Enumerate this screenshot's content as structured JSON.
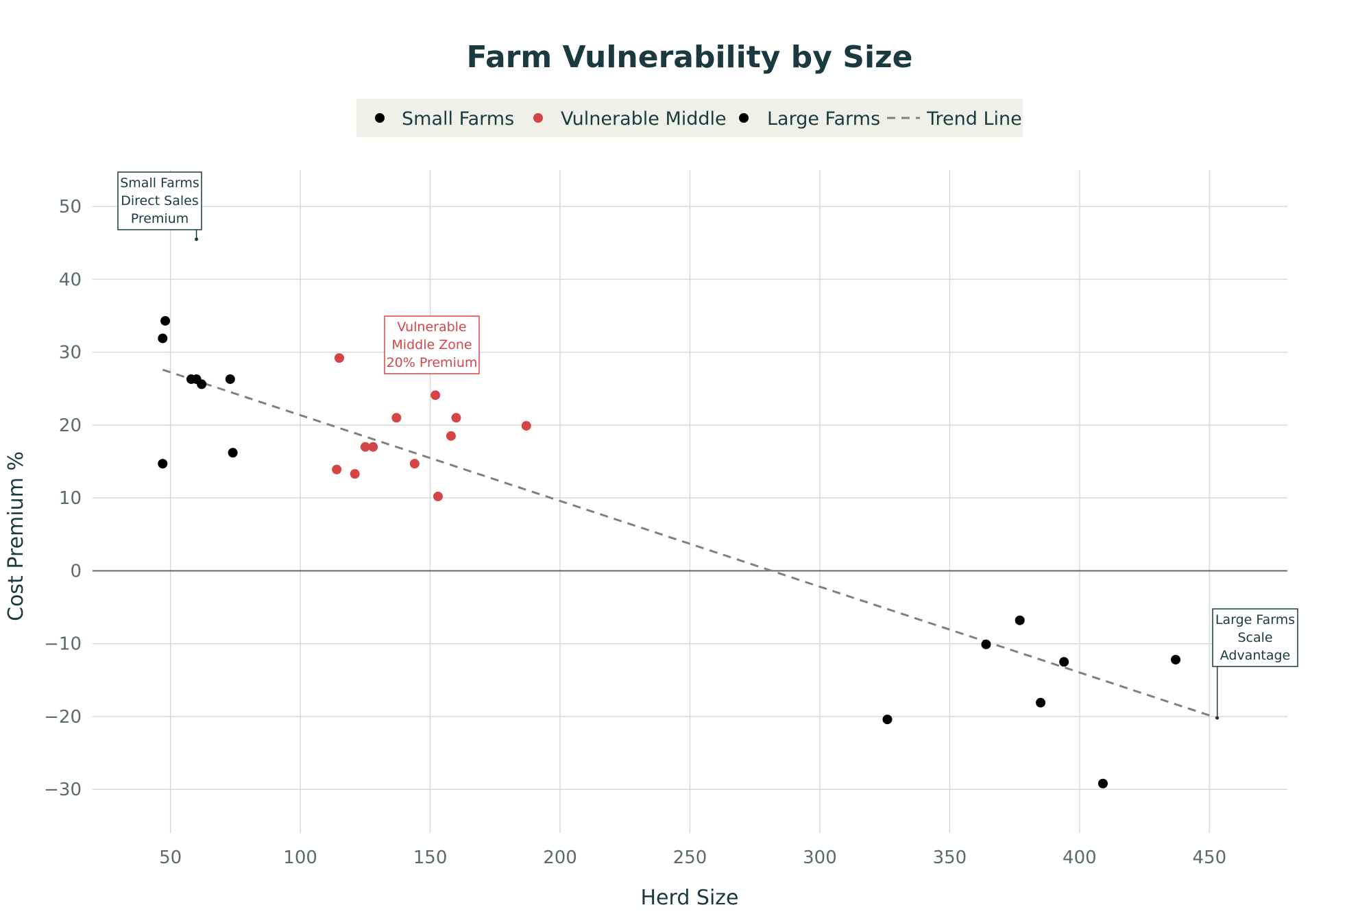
{
  "colors": {
    "small": "#000000",
    "middle": "#d64545",
    "large": "#000000",
    "trend": "#808080",
    "grid": "#d9d9d9",
    "zero": "#666666",
    "title": "#1b3a3f",
    "legend_bg": "#f0f0ea"
  },
  "chart_data": {
    "type": "scatter",
    "title": "Farm Vulnerability by Size",
    "xlabel": "Herd Size",
    "ylabel": "Cost Premium %",
    "xlim": [
      20,
      480
    ],
    "ylim": [
      -36,
      55
    ],
    "xticks": [
      50,
      100,
      150,
      200,
      250,
      300,
      350,
      400,
      450
    ],
    "yticks": [
      -30,
      -20,
      -10,
      0,
      10,
      20,
      30,
      40,
      50
    ],
    "xtick_labels": [
      "50",
      "100",
      "150",
      "200",
      "250",
      "300",
      "350",
      "400",
      "450"
    ],
    "ytick_labels": [
      "−30",
      "−20",
      "−10",
      "0",
      "10",
      "20",
      "30",
      "40",
      "50"
    ],
    "legend_position": "top-center",
    "grid": true,
    "series": [
      {
        "name": "Small Farms",
        "color_key": "small",
        "x": [
          48,
          47,
          58,
          60,
          62,
          73,
          74,
          47
        ],
        "y": [
          34.3,
          31.9,
          26.3,
          26.3,
          25.6,
          26.3,
          16.2,
          14.7
        ]
      },
      {
        "name": "Vulnerable Middle",
        "color_key": "middle",
        "x": [
          115,
          114,
          121,
          125,
          128,
          137,
          144,
          152,
          153,
          158,
          160,
          187
        ],
        "y": [
          29.2,
          13.9,
          13.3,
          17.0,
          17.0,
          21.0,
          14.7,
          24.1,
          10.2,
          18.5,
          21.0,
          19.9
        ]
      },
      {
        "name": "Large Farms",
        "color_key": "large",
        "x": [
          326,
          364,
          377,
          385,
          394,
          409,
          437
        ],
        "y": [
          -20.4,
          -10.1,
          -6.8,
          -18.1,
          -12.5,
          -29.2,
          -12.2
        ]
      }
    ],
    "trend_line": {
      "name": "Trend Line",
      "x": [
        47,
        453
      ],
      "y": [
        27.6,
        -20.2
      ]
    },
    "annotations": [
      {
        "lines": [
          "Small Farms",
          "Direct Sales",
          "Premium"
        ],
        "point": [
          60,
          45.5
        ],
        "color_key": "title"
      },
      {
        "lines": [
          "Vulnerable",
          "Middle Zone",
          "20% Premium"
        ],
        "point": [
          150,
          34.5
        ],
        "color_key": "middle"
      },
      {
        "lines": [
          "Large Farms",
          "Scale",
          "Advantage"
        ],
        "point": [
          453,
          -20.2
        ],
        "color_key": "title"
      }
    ]
  }
}
